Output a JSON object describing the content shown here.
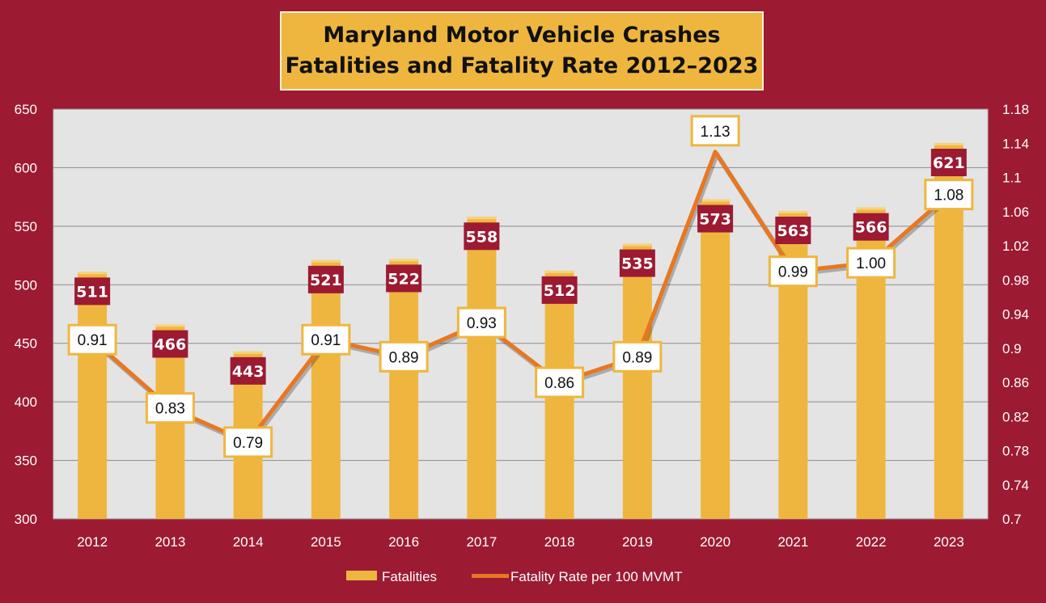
{
  "title_lines": [
    "Maryland Motor Vehicle Crashes",
    "Fatalities and Fatality Rate 2012–2023"
  ],
  "colors": {
    "background": "#9c1a32",
    "plot_area": "#e4e4e4",
    "bar": "#efb63f",
    "line": "#e87722",
    "bar_label_bg": "#9c1a32",
    "rate_label_bg": "#ffffff",
    "rate_label_border": "#efb63f"
  },
  "chart_data": {
    "type": "bar",
    "categories": [
      "2012",
      "2013",
      "2014",
      "2015",
      "2016",
      "2017",
      "2018",
      "2019",
      "2020",
      "2021",
      "2022",
      "2023"
    ],
    "series": [
      {
        "name": "Fatalities",
        "type": "bar",
        "axis": "left",
        "values": [
          511,
          466,
          443,
          521,
          522,
          558,
          512,
          535,
          573,
          563,
          566,
          621
        ]
      },
      {
        "name": "Fatality Rate per 100 MVMT",
        "type": "line",
        "axis": "right",
        "values": [
          0.91,
          0.83,
          0.79,
          0.91,
          0.89,
          0.93,
          0.86,
          0.89,
          1.13,
          0.99,
          1.0,
          1.08
        ],
        "labels": [
          "0.91",
          "0.83",
          "0.79",
          "0.91",
          "0.89",
          "0.93",
          "0.86",
          "0.89",
          "1.13",
          "0.99",
          "1.00",
          "1.08"
        ]
      }
    ],
    "y_left": {
      "min": 300,
      "max": 650,
      "ticks": [
        "300",
        "350",
        "400",
        "450",
        "500",
        "550",
        "600",
        "650"
      ]
    },
    "y_right": {
      "min": 0.7,
      "max": 1.18,
      "ticks": [
        "0.7",
        "0.74",
        "0.78",
        "0.82",
        "0.86",
        "0.9",
        "0.94",
        "0.98",
        "1.02",
        "1.06",
        "1.1",
        "1.14",
        "1.18"
      ]
    },
    "grid": true,
    "legend_position": "bottom"
  }
}
